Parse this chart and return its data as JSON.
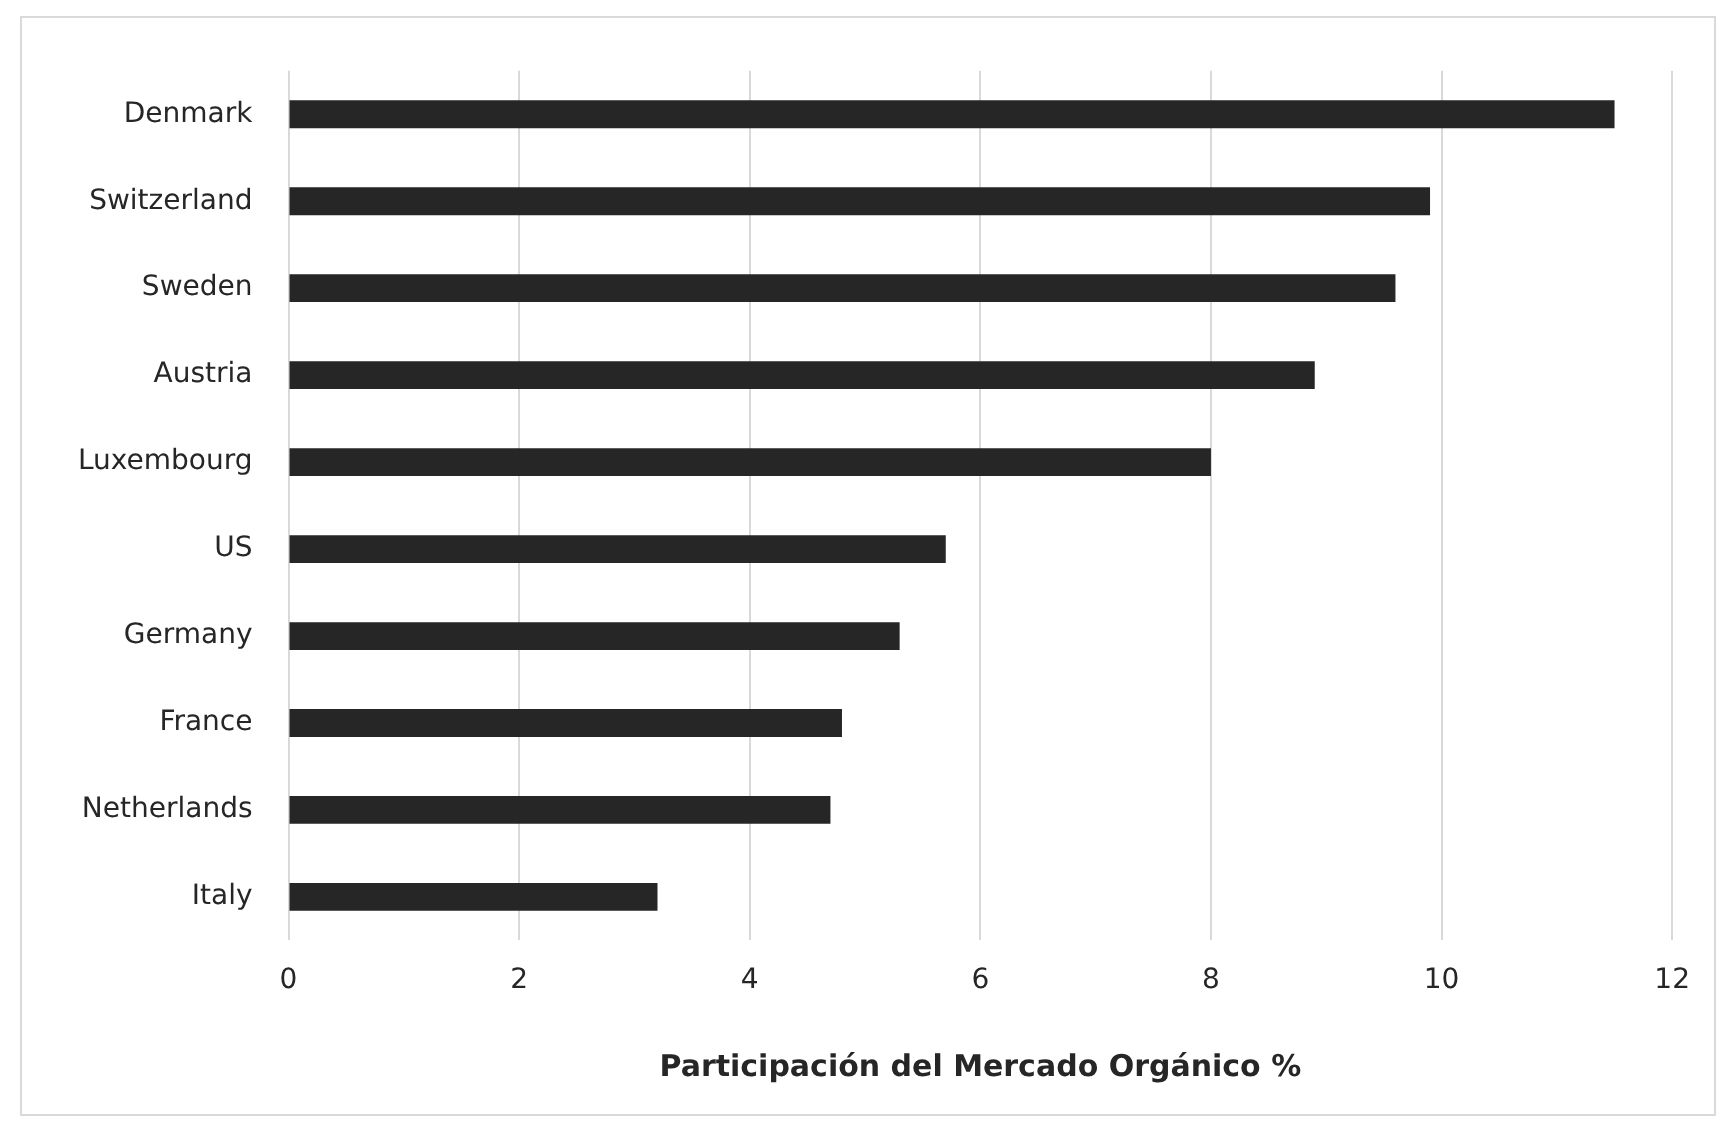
{
  "chart_data": {
    "type": "bar",
    "orientation": "horizontal",
    "xlabel": "Participación del Mercado Orgánico %",
    "categories": [
      "Denmark",
      "Switzerland",
      "Sweden",
      "Austria",
      "Luxembourg",
      "US",
      "Germany",
      "France",
      "Netherlands",
      "Italy"
    ],
    "values": [
      11.5,
      9.9,
      9.6,
      8.9,
      8.0,
      5.7,
      5.3,
      4.8,
      4.7,
      3.2
    ],
    "color": "#262626",
    "xlim": [
      0,
      12
    ],
    "xticks": [
      0,
      2,
      4,
      6,
      8,
      10,
      12
    ],
    "grid": "x",
    "legend": false
  }
}
